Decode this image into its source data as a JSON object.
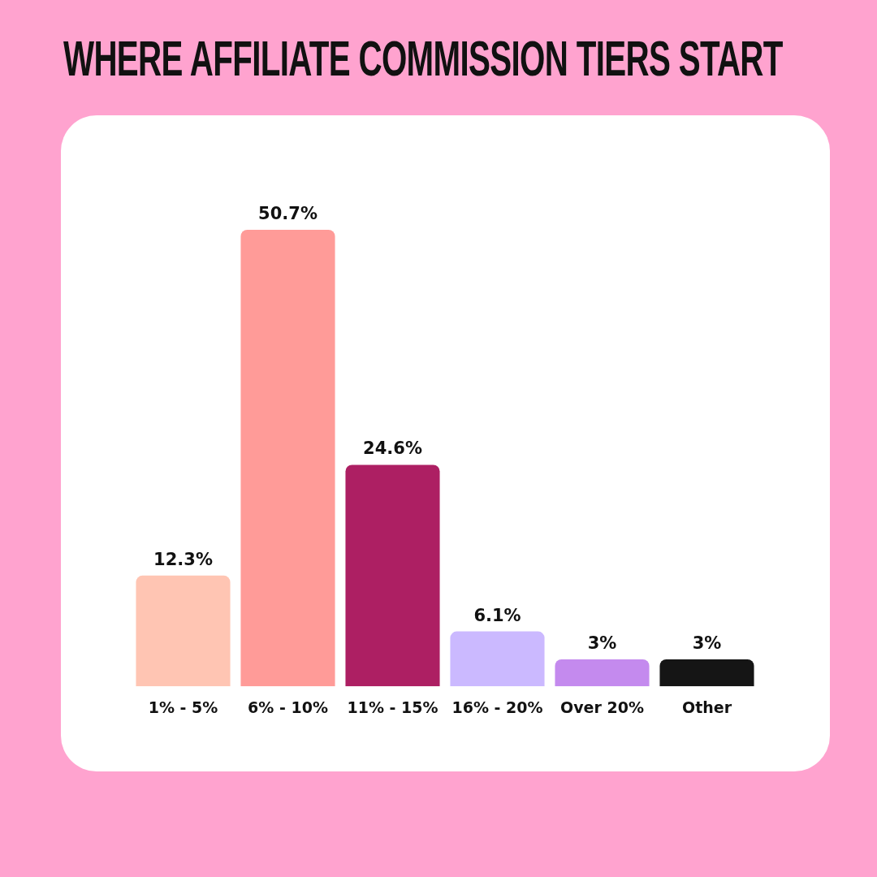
{
  "chart_data": {
    "type": "bar",
    "title": "WHERE AFFILIATE COMMISSION TIERS START",
    "categories": [
      "1% - 5%",
      "6% - 10%",
      "11% - 15%",
      "16% - 20%",
      "Over 20%",
      "Other"
    ],
    "values": [
      12.3,
      50.7,
      24.6,
      6.1,
      3,
      3
    ],
    "colors": [
      "#ffc5b3",
      "#ff9b98",
      "#ad1f63",
      "#cbb9ff",
      "#c48aee",
      "#151515"
    ],
    "value_labels": [
      "12.3%",
      "50.7%",
      "24.6%",
      "6.1%",
      "3%",
      "3%"
    ],
    "legend": false,
    "grid": false
  }
}
